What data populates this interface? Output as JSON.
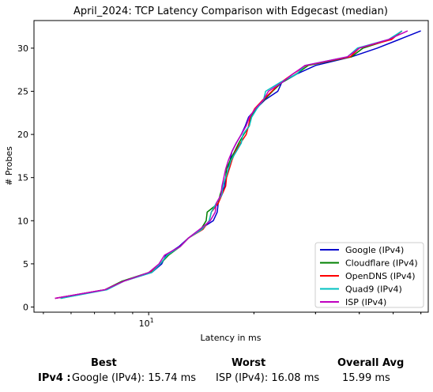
{
  "chart_data": {
    "type": "line",
    "title": "April_2024: TCP Latency Comparison with Edgecast (median)",
    "xlabel": "Latency in ms",
    "ylabel": "# Probes",
    "x_scale": "log",
    "xlim": [
      4.7,
      63
    ],
    "ylim": [
      -0.6,
      33.2
    ],
    "x_ticks": [
      {
        "value": 10,
        "label": "10^1"
      }
    ],
    "y_ticks": [
      0,
      5,
      10,
      15,
      20,
      25,
      30
    ],
    "legend_position": "lower right",
    "grid": false,
    "series": [
      {
        "name": "Google (IPv4)",
        "color": "#0000cc",
        "x": [
          5.4,
          7.5,
          8.5,
          10.2,
          10.9,
          11.2,
          12.2,
          13.0,
          14.0,
          15.3,
          15.7,
          15.8,
          16.1,
          16.5,
          16.6,
          16.9,
          17.1,
          17.3,
          17.8,
          18.4,
          18.9,
          19.3,
          20.3,
          21.5,
          23.4,
          24.0,
          26.5,
          30.0,
          38.0,
          45.0,
          52.0,
          60.0
        ],
        "y": [
          1,
          2,
          3,
          4,
          5,
          6,
          7,
          8,
          9,
          10,
          11,
          12,
          13,
          14,
          15,
          16,
          17,
          18,
          19,
          20,
          21,
          22,
          23,
          24,
          25,
          26,
          27,
          28,
          29,
          30,
          31,
          32
        ]
      },
      {
        "name": "Cloudflare (IPv4)",
        "color": "#008000",
        "x": [
          5.6,
          7.5,
          8.4,
          10.0,
          10.8,
          11.4,
          12.3,
          13.0,
          14.1,
          14.6,
          14.7,
          15.8,
          16.0,
          16.3,
          16.6,
          16.7,
          17.1,
          17.6,
          18.1,
          18.7,
          19.4,
          19.6,
          20.3,
          21.4,
          22.6,
          24.0,
          26.4,
          28.6,
          38.0,
          41.0,
          49.0,
          53.0
        ],
        "y": [
          1,
          2,
          3,
          4,
          5,
          6,
          7,
          8,
          9,
          10,
          11,
          12,
          13,
          14,
          15,
          16,
          17,
          18,
          19,
          20,
          21,
          22,
          23,
          24,
          25,
          26,
          27,
          28,
          29,
          30,
          31,
          32
        ]
      },
      {
        "name": "OpenDNS (IPv4)",
        "color": "#ff0000",
        "x": [
          5.4,
          7.5,
          8.5,
          10.1,
          10.8,
          11.3,
          12.3,
          13.0,
          14.3,
          14.9,
          15.1,
          15.8,
          16.2,
          16.6,
          16.7,
          17.0,
          17.3,
          17.7,
          18.3,
          19.0,
          19.3,
          19.5,
          20.1,
          21.2,
          22.5,
          23.8,
          25.8,
          28.2,
          37.7,
          40.0,
          49.5,
          53.0
        ],
        "y": [
          1,
          2,
          3,
          4,
          5,
          6,
          7,
          8,
          9,
          10,
          11,
          12,
          13,
          14,
          15,
          16,
          17,
          18,
          19,
          20,
          21,
          22,
          23,
          24,
          25,
          26,
          27,
          28,
          29,
          30,
          31,
          32
        ]
      },
      {
        "name": "Quad9 (IPv4)",
        "color": "#00c0c0",
        "x": [
          5.6,
          7.6,
          8.5,
          10.2,
          10.8,
          11.3,
          12.3,
          13.0,
          14.2,
          14.9,
          15.1,
          15.6,
          16.2,
          16.3,
          16.6,
          16.9,
          17.2,
          17.8,
          18.4,
          18.6,
          19.4,
          19.7,
          20.4,
          21.3,
          21.6,
          23.7,
          26.5,
          28.0,
          37.0,
          39.5,
          48.5,
          53.0
        ],
        "y": [
          1,
          2,
          3,
          4,
          5,
          6,
          7,
          8,
          9,
          10,
          11,
          12,
          13,
          14,
          15,
          16,
          17,
          18,
          19,
          20,
          21,
          22,
          23,
          24,
          25,
          26,
          27,
          28,
          29,
          30,
          31,
          32
        ]
      },
      {
        "name": "ISP (IPv4)",
        "color": "#c000c0",
        "x": [
          5.4,
          7.5,
          8.5,
          10.0,
          10.7,
          11.1,
          12.3,
          13.0,
          14.0,
          15.0,
          15.5,
          15.6,
          16.1,
          16.2,
          16.4,
          16.6,
          16.9,
          17.3,
          17.8,
          18.4,
          19.0,
          19.4,
          20.2,
          21.3,
          22.0,
          24.0,
          25.8,
          28.0,
          37.0,
          40.0,
          48.5,
          55.0
        ],
        "y": [
          1,
          2,
          3,
          4,
          5,
          6,
          7,
          8,
          9,
          10,
          11,
          12,
          13,
          14,
          15,
          16,
          17,
          18,
          19,
          20,
          21,
          22,
          23,
          24,
          25,
          26,
          27,
          28,
          29,
          30,
          31,
          32
        ]
      }
    ]
  },
  "summary": {
    "best_header": "Best",
    "worst_header": "Worst",
    "avg_header": "Overall Avg",
    "row_label": "IPv4 :",
    "best_value": "Google (IPv4): 15.74 ms",
    "worst_value": "ISP (IPv4): 16.08 ms",
    "avg_value": "15.99 ms"
  }
}
